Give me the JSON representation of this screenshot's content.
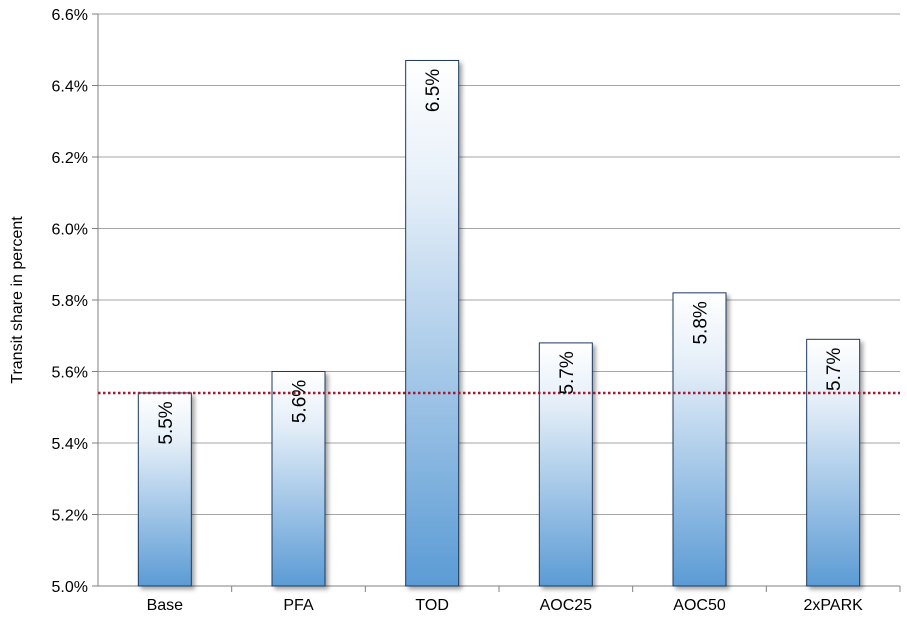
{
  "chart_data": {
    "type": "bar",
    "categories": [
      "Base",
      "PFA",
      "TOD",
      "AOC25",
      "AOC50",
      "2xPARK"
    ],
    "values": [
      5.54,
      5.6,
      6.47,
      5.68,
      5.82,
      5.69
    ],
    "data_labels": [
      "5.5%",
      "5.6%",
      "6.5%",
      "5.7%",
      "5.8%",
      "5.7%"
    ],
    "ylabel": "Transit share in percent",
    "ylim": [
      5.0,
      6.6
    ],
    "yticks": [
      5.0,
      5.2,
      5.4,
      5.6,
      5.8,
      6.0,
      6.2,
      6.4,
      6.6
    ],
    "ytick_labels": [
      "5.0%",
      "5.2%",
      "5.4%",
      "5.6%",
      "5.8%",
      "6.0%",
      "6.2%",
      "6.4%",
      "6.6%"
    ],
    "reference_line": 5.54,
    "grid": true,
    "legend": "none",
    "colors": {
      "bar_top": "#ffffff",
      "bar_bottom": "#5b9bd5",
      "bar_border": "#1f3a5f",
      "grid": "#a6a6a6",
      "reference_line": "#a6192e"
    }
  }
}
